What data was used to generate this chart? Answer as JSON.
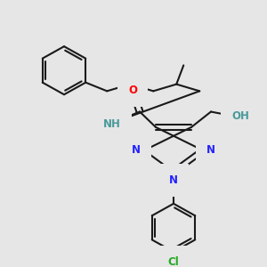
{
  "bg_color": "#e6e6e6",
  "bond_color": "#1a1a1a",
  "bond_width": 1.5,
  "dbo": 0.006,
  "atom_colors": {
    "N": "#2222ff",
    "O": "#ff0000",
    "Cl": "#22aa22",
    "NH": "#4a9a9a",
    "OH": "#4a9a9a"
  },
  "font_size": 8.5
}
